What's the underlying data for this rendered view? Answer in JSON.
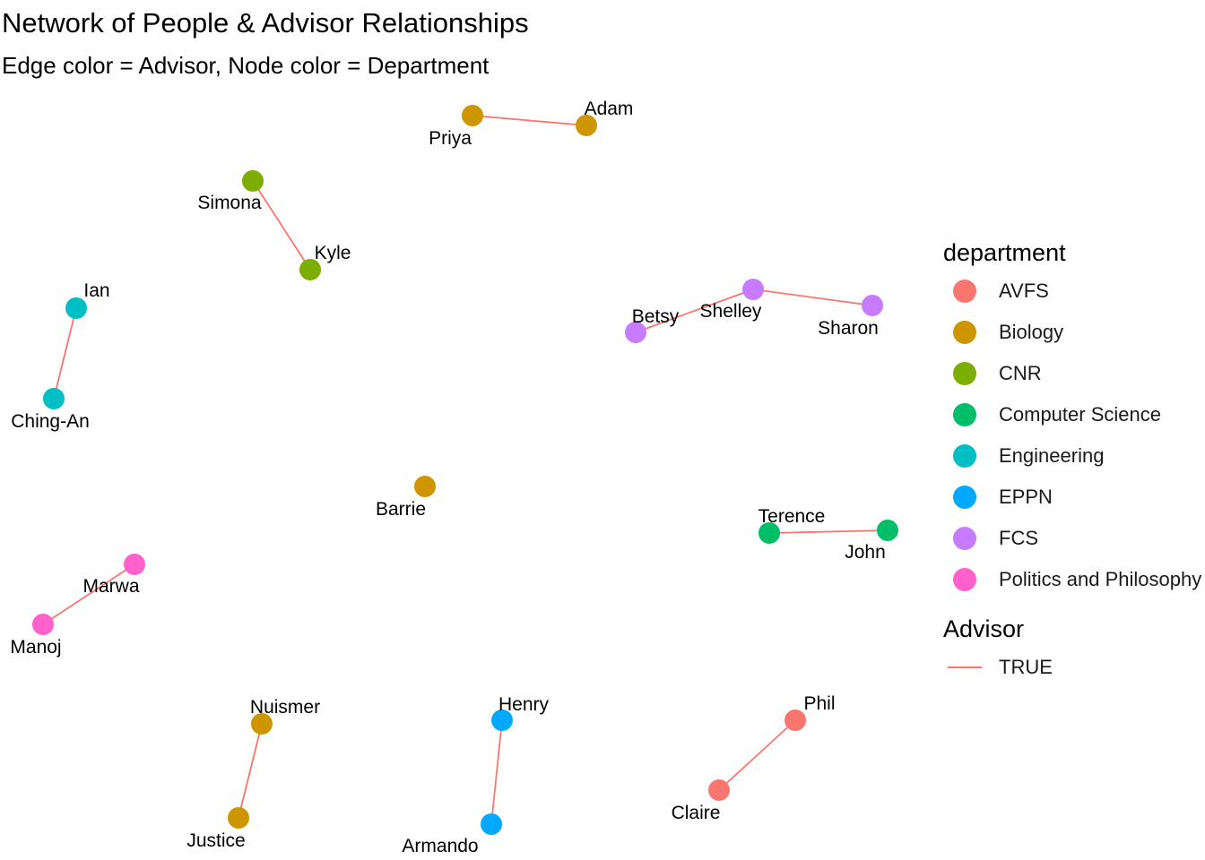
{
  "title": "Network of People & Advisor Relationships",
  "subtitle": "Edge color = Advisor, Node color = Department",
  "legend": {
    "department_title": "department",
    "departments": [
      {
        "name": "AVFS",
        "color": "#F8766D"
      },
      {
        "name": "Biology",
        "color": "#CD9600"
      },
      {
        "name": "CNR",
        "color": "#7CAE00"
      },
      {
        "name": "Computer Science",
        "color": "#00BE67"
      },
      {
        "name": "Engineering",
        "color": "#00BFC4"
      },
      {
        "name": "EPPN",
        "color": "#00A9FF"
      },
      {
        "name": "FCS",
        "color": "#C77CFF"
      },
      {
        "name": "Politics and Philosophy",
        "color": "#FF61CC"
      }
    ],
    "advisor_title": "Advisor",
    "advisor_items": [
      {
        "name": "TRUE",
        "color": "#F8766D"
      }
    ]
  },
  "nodes": [
    {
      "name": "Priya",
      "department": "Biology"
    },
    {
      "name": "Adam",
      "department": "Biology"
    },
    {
      "name": "Simona",
      "department": "CNR"
    },
    {
      "name": "Kyle",
      "department": "CNR"
    },
    {
      "name": "Ian",
      "department": "Engineering"
    },
    {
      "name": "Ching-An",
      "department": "Engineering"
    },
    {
      "name": "Betsy",
      "department": "FCS"
    },
    {
      "name": "Shelley",
      "department": "FCS"
    },
    {
      "name": "Sharon",
      "department": "FCS"
    },
    {
      "name": "Barrie",
      "department": "Biology"
    },
    {
      "name": "Terence",
      "department": "Computer Science"
    },
    {
      "name": "John",
      "department": "Computer Science"
    },
    {
      "name": "Marwa",
      "department": "Politics and Philosophy"
    },
    {
      "name": "Manoj",
      "department": "Politics and Philosophy"
    },
    {
      "name": "Nuismer",
      "department": "Biology"
    },
    {
      "name": "Justice",
      "department": "Biology"
    },
    {
      "name": "Henry",
      "department": "EPPN"
    },
    {
      "name": "Armando",
      "department": "EPPN"
    },
    {
      "name": "Phil",
      "department": "AVFS"
    },
    {
      "name": "Claire",
      "department": "AVFS"
    }
  ],
  "edges": [
    {
      "from": "Priya",
      "to": "Adam",
      "advisor": "TRUE"
    },
    {
      "from": "Simona",
      "to": "Kyle",
      "advisor": "TRUE"
    },
    {
      "from": "Ian",
      "to": "Ching-An",
      "advisor": "TRUE"
    },
    {
      "from": "Betsy",
      "to": "Shelley",
      "advisor": "TRUE"
    },
    {
      "from": "Shelley",
      "to": "Sharon",
      "advisor": "TRUE"
    },
    {
      "from": "Terence",
      "to": "John",
      "advisor": "TRUE"
    },
    {
      "from": "Marwa",
      "to": "Manoj",
      "advisor": "TRUE"
    },
    {
      "from": "Nuismer",
      "to": "Justice",
      "advisor": "TRUE"
    },
    {
      "from": "Henry",
      "to": "Armando",
      "advisor": "TRUE"
    },
    {
      "from": "Phil",
      "to": "Claire",
      "advisor": "TRUE"
    }
  ]
}
